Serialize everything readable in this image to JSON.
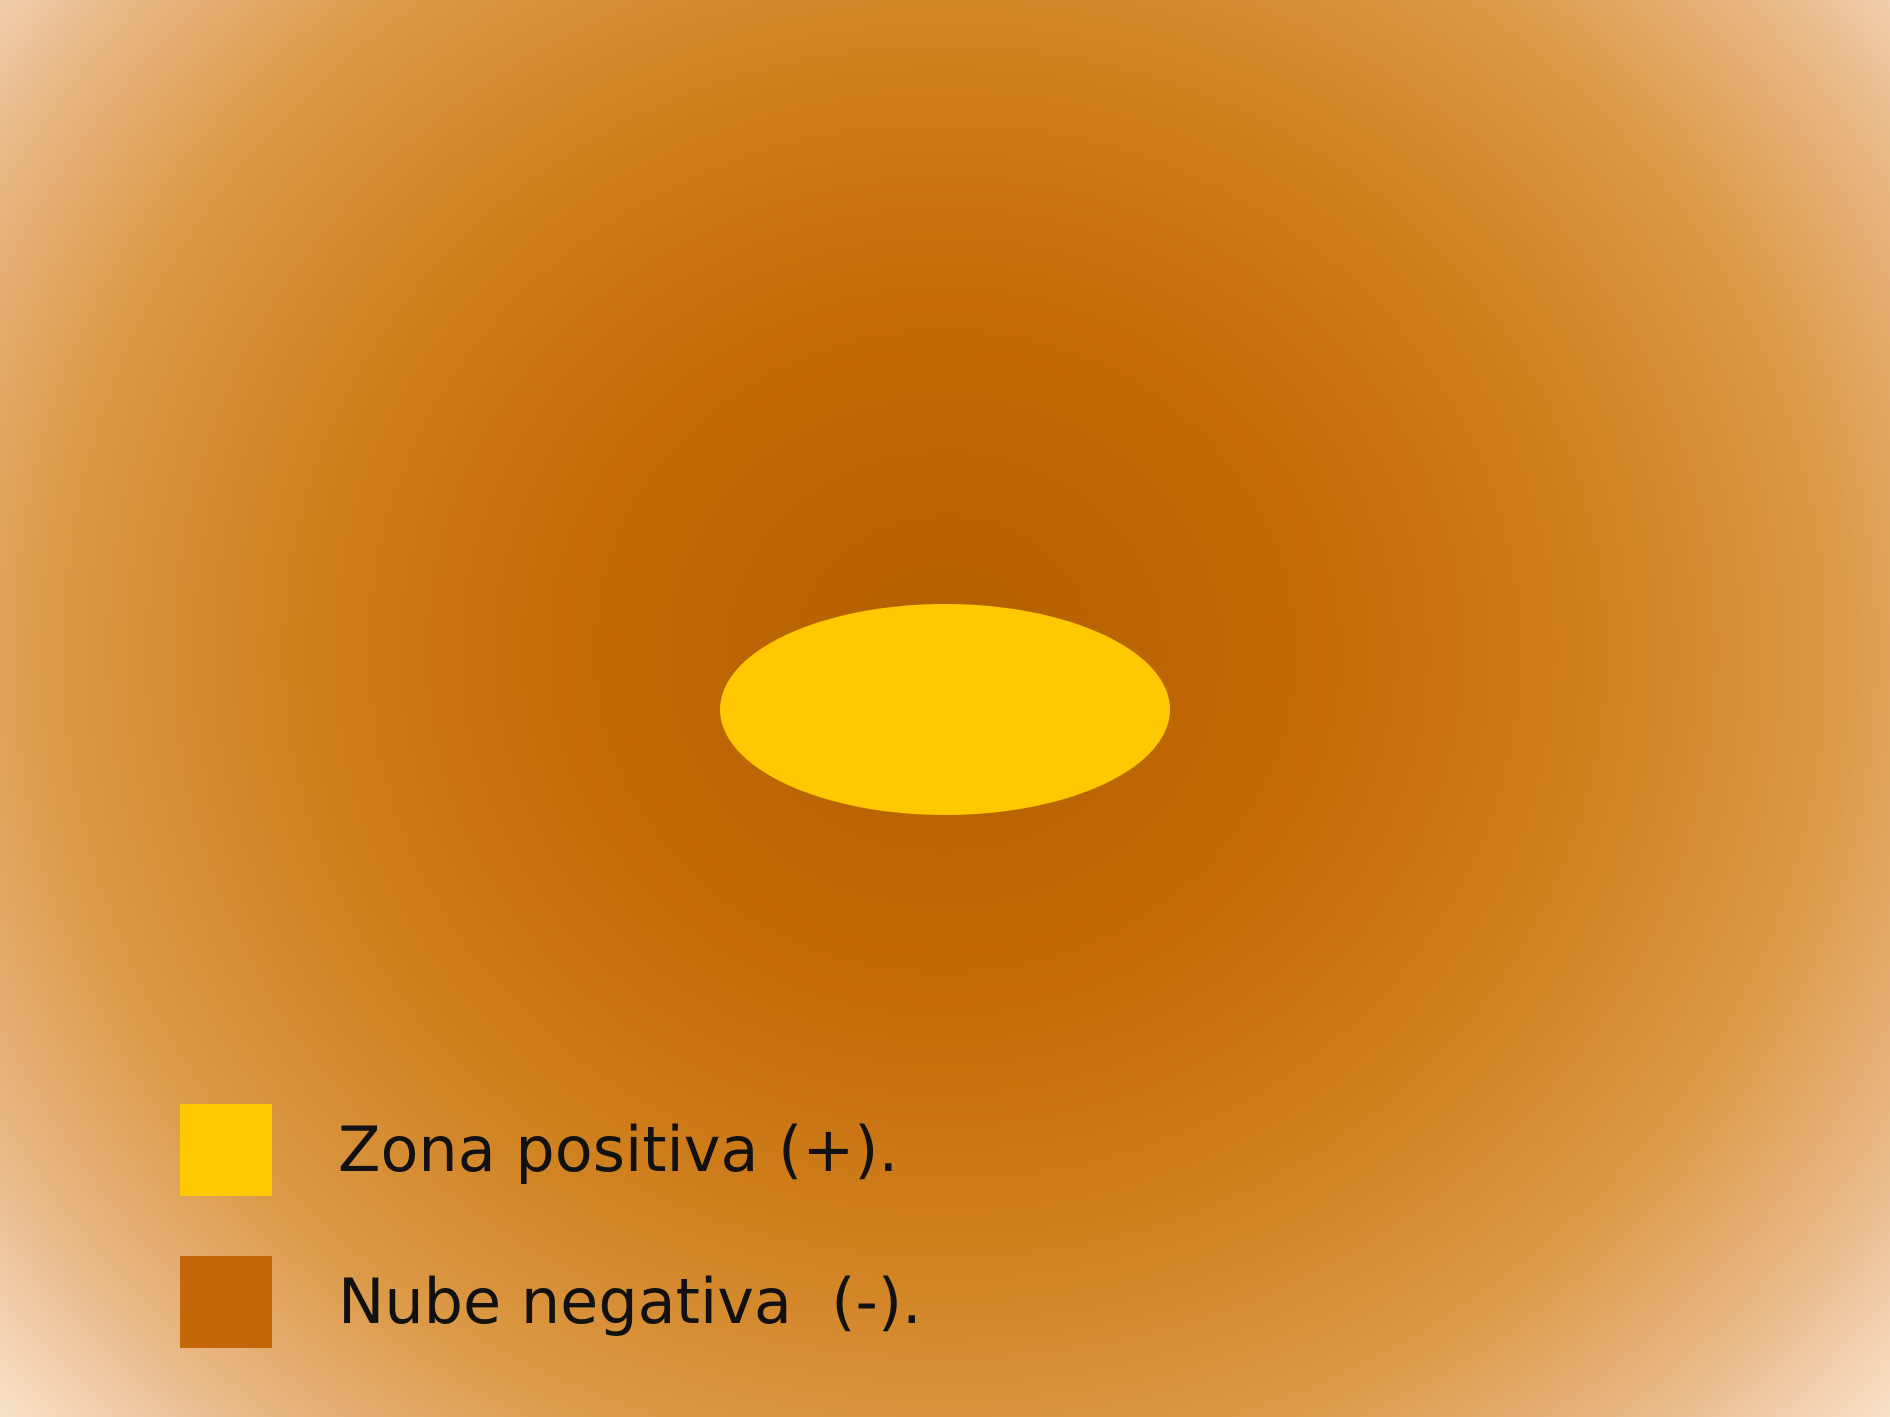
{
  "colors": {
    "positive_zone": "#ffc800",
    "negative_cloud": "#c4670b"
  },
  "legend": {
    "items": [
      {
        "label": "Zona positiva (+).",
        "color": "#ffc800"
      },
      {
        "label": "Nube negativa  (-).",
        "color": "#c4670b"
      }
    ]
  }
}
